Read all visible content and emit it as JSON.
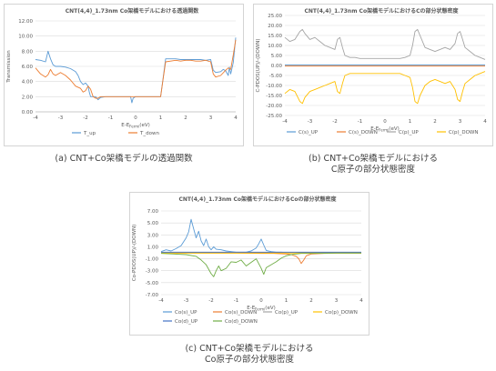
{
  "captions": {
    "a": [
      "(a) CNT+Co架橋モデルの透過関数"
    ],
    "b": [
      "(b) CNT+Co架橋モデルにおける",
      "C原子の部分状態密度"
    ],
    "c": [
      "(c) CNT+Co架橋モデルにおける",
      "Co原子の部分状態密度"
    ]
  },
  "chart_data": [
    {
      "id": "a",
      "type": "line",
      "title": "CNT(4,4)_1.73nm Co架橋モデルにおける透過関数",
      "xlabel_main": "E-E",
      "xlabel_sub": "Fermi",
      "xlabel_unit": "(eV)",
      "ylabel": "Transmission",
      "xlim": [
        -4,
        4
      ],
      "ylim": [
        0,
        12
      ],
      "xticks": [
        -4,
        -3,
        -2,
        -1,
        0,
        1,
        2,
        3,
        4
      ],
      "yticks": [
        0,
        2,
        4,
        6,
        8,
        10,
        12
      ],
      "ytick_labels": [
        "0.00",
        "2.00",
        "4.00",
        "6.00",
        "8.00",
        "10.00",
        "12.00"
      ],
      "grid": true,
      "legend_position": "bottom",
      "series": [
        {
          "name": "T_up",
          "color": "#5b9bd5",
          "x": [
            -4,
            -3.8,
            -3.6,
            -3.5,
            -3.4,
            -3.3,
            -3.2,
            -3.0,
            -2.8,
            -2.6,
            -2.4,
            -2.3,
            -2.2,
            -2.1,
            -2.0,
            -1.9,
            -1.85,
            -1.8,
            -1.6,
            -1.5,
            -1.4,
            -1.2,
            -1.0,
            -0.8,
            -0.6,
            -0.4,
            -0.2,
            -0.15,
            -0.1,
            0,
            0.2,
            0.4,
            0.6,
            0.8,
            1.0,
            1.1,
            1.2,
            1.4,
            1.6,
            1.8,
            2.0,
            2.2,
            2.4,
            2.6,
            2.8,
            3.0,
            3.1,
            3.2,
            3.4,
            3.5,
            3.6,
            3.7,
            3.75,
            3.8,
            3.9,
            4.0
          ],
          "y": [
            6.9,
            6.8,
            6.6,
            8.0,
            7.0,
            6.2,
            6.0,
            6.0,
            5.9,
            5.7,
            5.3,
            4.8,
            4.0,
            3.6,
            3.8,
            3.4,
            2.6,
            2.0,
            2.0,
            1.6,
            1.9,
            2.0,
            2.0,
            2.0,
            2.0,
            2.0,
            2.0,
            1.2,
            1.8,
            2.0,
            2.0,
            2.0,
            2.0,
            2.0,
            2.0,
            4.5,
            7.0,
            7.0,
            7.0,
            6.9,
            6.9,
            6.9,
            6.9,
            6.9,
            6.8,
            6.9,
            5.5,
            5.2,
            5.3,
            5.6,
            5.4,
            4.8,
            5.9,
            5.0,
            6.5,
            9.8
          ]
        },
        {
          "name": "T_down",
          "color": "#ed7d31",
          "x": [
            -4,
            -3.8,
            -3.6,
            -3.5,
            -3.4,
            -3.3,
            -3.2,
            -3.0,
            -2.8,
            -2.6,
            -2.4,
            -2.2,
            -2.1,
            -2.0,
            -1.9,
            -1.8,
            -1.7,
            -1.6,
            -1.5,
            -1.4,
            -1.2,
            -1.0,
            -0.8,
            -0.6,
            -0.4,
            -0.2,
            0,
            0.2,
            0.4,
            0.6,
            0.8,
            1.0,
            1.1,
            1.2,
            1.4,
            1.6,
            1.8,
            2.0,
            2.2,
            2.4,
            2.6,
            2.8,
            3.0,
            3.1,
            3.2,
            3.4,
            3.6,
            3.7,
            3.8,
            3.9,
            4.0
          ],
          "y": [
            5.8,
            5.0,
            4.6,
            4.9,
            5.6,
            5.0,
            4.8,
            5.2,
            4.8,
            4.2,
            3.4,
            3.1,
            2.6,
            2.8,
            3.4,
            3.0,
            2.0,
            1.8,
            1.8,
            2.0,
            2.0,
            2.0,
            2.0,
            2.0,
            2.0,
            2.0,
            2.0,
            2.0,
            2.0,
            2.0,
            2.0,
            2.0,
            4.4,
            6.6,
            6.7,
            6.8,
            6.7,
            6.8,
            6.8,
            6.7,
            6.7,
            6.8,
            6.6,
            5.0,
            4.6,
            4.8,
            5.5,
            5.8,
            5.6,
            7.5,
            9.5
          ]
        }
      ]
    },
    {
      "id": "b",
      "type": "line",
      "title": "CNT(4,4)_1.73nm Co架橋モデルにおけるCの部分状態密度",
      "xlabel_main": "E-E",
      "xlabel_sub": "Fermi",
      "xlabel_unit": "(eV)",
      "ylabel": "C-PDOS(UP)/-(DOWN)",
      "xlim": [
        -4,
        4
      ],
      "ylim": [
        -25,
        25
      ],
      "xticks": [
        -4,
        -3,
        -2,
        -1,
        0,
        1,
        2,
        3,
        4
      ],
      "yticks": [
        25,
        20,
        15,
        10,
        5,
        0,
        -5,
        -10,
        -15,
        -20,
        -25
      ],
      "ytick_labels": [
        "25.00",
        "20.00",
        "15.00",
        "10.00",
        "5.00",
        "0.00",
        "-5.00",
        "-10.00",
        "-15.00",
        "-20.00",
        "-25.00"
      ],
      "grid": true,
      "legend_position": "bottom",
      "series": [
        {
          "name": "C(s)_UP",
          "color": "#5b9bd5",
          "x": [
            -4,
            4
          ],
          "y": [
            0.3,
            0.3
          ]
        },
        {
          "name": "C(s)_DOWN",
          "color": "#ed7d31",
          "x": [
            -4,
            4
          ],
          "y": [
            -0.3,
            -0.3
          ]
        },
        {
          "name": "C(p)_UP",
          "color": "#a5a5a5",
          "x": [
            -4,
            -3.8,
            -3.6,
            -3.4,
            -3.3,
            -3.2,
            -3.0,
            -2.8,
            -2.6,
            -2.4,
            -2.2,
            -2.0,
            -1.9,
            -1.8,
            -1.7,
            -1.6,
            -1.4,
            -1.2,
            -1.0,
            -0.8,
            -0.6,
            -0.4,
            -0.2,
            0,
            0.2,
            0.4,
            0.6,
            0.8,
            1.0,
            1.1,
            1.2,
            1.3,
            1.4,
            1.6,
            1.8,
            2.0,
            2.2,
            2.4,
            2.6,
            2.8,
            2.9,
            3.0,
            3.1,
            3.2,
            3.4,
            3.6,
            3.8,
            4.0
          ],
          "y": [
            14,
            12,
            13,
            17,
            18,
            16,
            13,
            14,
            12,
            10,
            9,
            8,
            13,
            14,
            9,
            5,
            4,
            4,
            3.5,
            3.5,
            3.5,
            3.5,
            3.5,
            3.5,
            3.5,
            3.5,
            3.5,
            4,
            5,
            10,
            17,
            18,
            15,
            9,
            8,
            7,
            8,
            9,
            8,
            11,
            16,
            17,
            13,
            9,
            7,
            5,
            4,
            3
          ]
        },
        {
          "name": "C(p)_DOWN",
          "color": "#ffc000",
          "x": [
            -4,
            -3.8,
            -3.6,
            -3.4,
            -3.3,
            -3.2,
            -3.0,
            -2.8,
            -2.6,
            -2.4,
            -2.2,
            -2.0,
            -1.9,
            -1.8,
            -1.7,
            -1.6,
            -1.4,
            -1.2,
            -1.0,
            -0.8,
            -0.6,
            -0.4,
            -0.2,
            0,
            0.2,
            0.4,
            0.6,
            0.8,
            1.0,
            1.1,
            1.2,
            1.3,
            1.4,
            1.6,
            1.8,
            2.0,
            2.2,
            2.4,
            2.6,
            2.8,
            2.9,
            3.0,
            3.1,
            3.2,
            3.4,
            3.6,
            3.8,
            4.0
          ],
          "y": [
            -14,
            -12,
            -13,
            -18,
            -19,
            -16,
            -13,
            -12,
            -11,
            -10,
            -9,
            -8,
            -13,
            -14,
            -9,
            -5,
            -4,
            -4,
            -4,
            -4,
            -4,
            -4,
            -4,
            -4,
            -4,
            -4,
            -4,
            -5,
            -6,
            -11,
            -18,
            -19,
            -15,
            -10,
            -8,
            -7,
            -8,
            -9,
            -8,
            -12,
            -17,
            -18,
            -13,
            -9,
            -7,
            -5,
            -4,
            -3
          ]
        }
      ]
    },
    {
      "id": "c",
      "type": "line",
      "title": "CNT(4,4)_1.73nm Co架橋モデルにおけるCoの部分状態密度",
      "xlabel_main": "E-E",
      "xlabel_sub": "Fermi",
      "xlabel_unit": "(eV)",
      "ylabel": "Co-PDOS(UP)/-(DOWN)",
      "xlim": [
        -4,
        4
      ],
      "ylim": [
        -7,
        7
      ],
      "xticks": [
        -4,
        -3,
        -2,
        -1,
        0,
        1,
        2,
        3,
        4
      ],
      "yticks": [
        7,
        5,
        3,
        1,
        -1,
        -3,
        -5,
        -7
      ],
      "ytick_labels": [
        "7.00",
        "5.00",
        "3.00",
        "1.00",
        "-1.00",
        "-3.00",
        "-5.00",
        "-7.00"
      ],
      "grid": true,
      "legend_position": "bottom",
      "series": [
        {
          "name": "Co(s)_UP",
          "color": "#5b9bd5",
          "x": [
            -4,
            -3.8,
            -3.6,
            -3.4,
            -3.2,
            -3.0,
            -2.9,
            -2.8,
            -2.7,
            -2.6,
            -2.5,
            -2.4,
            -2.3,
            -2.2,
            -2.1,
            -2.0,
            -1.9,
            -1.8,
            -1.6,
            -1.4,
            -1.2,
            -1.0,
            -0.8,
            -0.6,
            -0.4,
            -0.2,
            -0.1,
            0,
            0.1,
            0.2,
            0.4,
            0.6,
            0.8,
            1.0,
            1.4,
            1.8,
            2.2,
            2.6,
            3.0,
            4.0
          ],
          "y": [
            0.2,
            0.5,
            0.3,
            0.7,
            1.2,
            2.5,
            3.5,
            5.6,
            4.0,
            2.5,
            3.6,
            2.0,
            1.2,
            2.3,
            1.0,
            0.5,
            1.0,
            0.6,
            0.5,
            0.3,
            0.2,
            0.1,
            0.1,
            0.1,
            0.3,
            0.8,
            1.5,
            2.3,
            1.3,
            0.4,
            0.2,
            0.1,
            0.1,
            0.05,
            0.05,
            0.05,
            0.05,
            0.05,
            0.05,
            0.05
          ]
        },
        {
          "name": "Co(s)_DOWN",
          "color": "#ed7d31",
          "x": [
            -4,
            -3.0,
            -2.0,
            -1.0,
            0,
            0.5,
            1.0,
            1.2,
            1.4,
            1.5,
            1.6,
            1.7,
            1.8,
            2.0,
            2.5,
            3.0,
            4.0
          ],
          "y": [
            -0.05,
            -0.05,
            -0.05,
            -0.05,
            -0.1,
            -0.1,
            -0.2,
            -0.3,
            -0.6,
            -1.0,
            -1.8,
            -1.2,
            -0.5,
            -0.2,
            -0.1,
            -0.05,
            -0.05
          ]
        },
        {
          "name": "Co(p)_UP",
          "color": "#a5a5a5",
          "x": [
            -4,
            4
          ],
          "y": [
            0.05,
            0.05
          ]
        },
        {
          "name": "Co(p)_DOWN",
          "color": "#ffc000",
          "x": [
            -4,
            4
          ],
          "y": [
            -0.05,
            -0.05
          ]
        },
        {
          "name": "Co(d)_UP",
          "color": "#4472c4",
          "x": [
            -4,
            4
          ],
          "y": [
            0.1,
            0.1
          ]
        },
        {
          "name": "Co(d)_DOWN",
          "color": "#70ad47",
          "x": [
            -4,
            -3.5,
            -3.0,
            -2.6,
            -2.4,
            -2.2,
            -2.0,
            -1.9,
            -1.8,
            -1.7,
            -1.6,
            -1.4,
            -1.2,
            -1.0,
            -0.8,
            -0.6,
            -0.4,
            -0.2,
            0,
            0.1,
            0.2,
            0.4,
            0.6,
            0.8,
            1.0,
            1.2,
            1.4,
            1.6,
            2.0,
            3.0,
            4.0
          ],
          "y": [
            -0.1,
            -0.2,
            -0.3,
            -0.6,
            -1.2,
            -2.0,
            -3.5,
            -4.0,
            -3.0,
            -2.2,
            -3.0,
            -2.6,
            -1.5,
            -1.6,
            -1.2,
            -2.2,
            -1.6,
            -1.0,
            -2.6,
            -3.6,
            -2.5,
            -2.0,
            -1.5,
            -0.9,
            -0.5,
            -0.3,
            -0.2,
            -0.1,
            -0.1,
            -0.05,
            -0.05
          ]
        }
      ]
    }
  ]
}
